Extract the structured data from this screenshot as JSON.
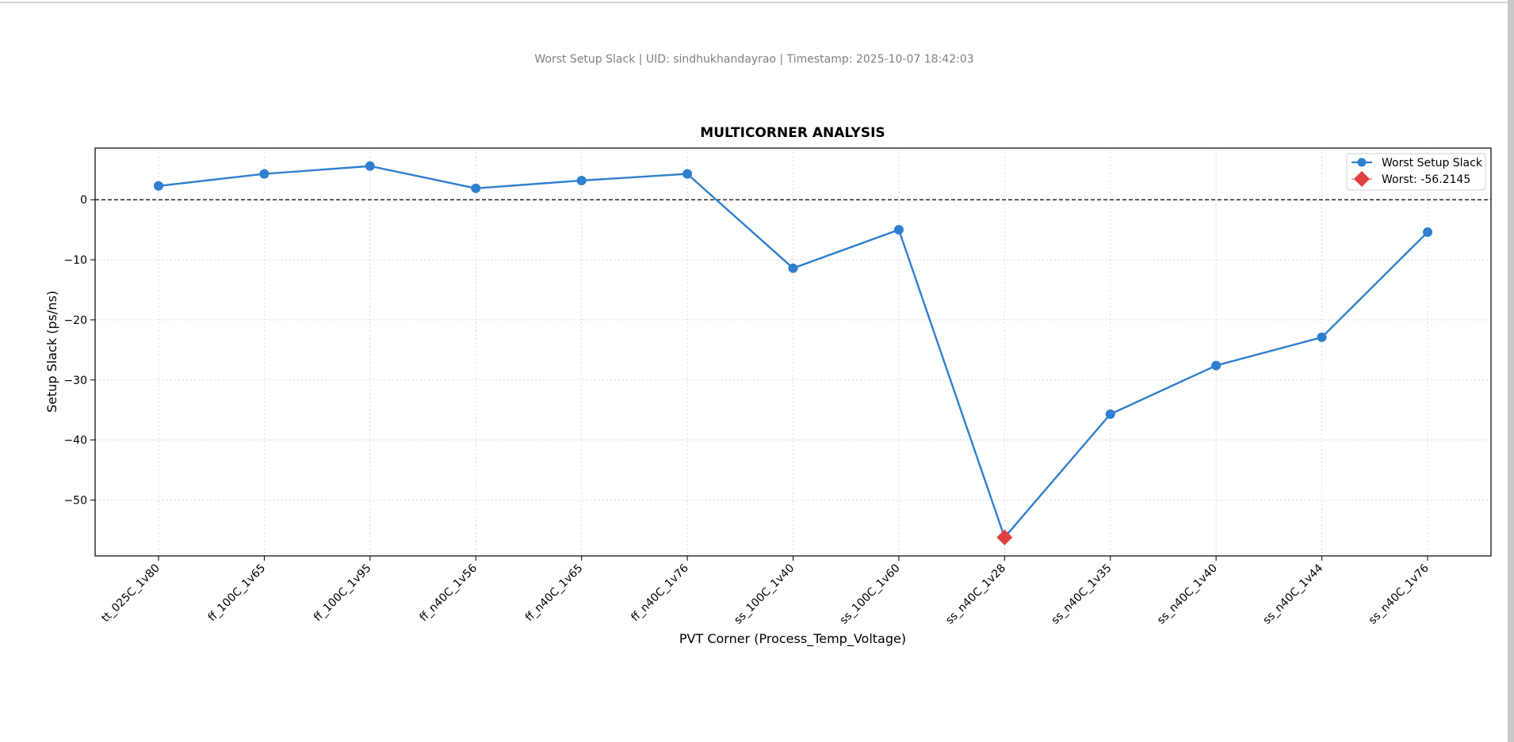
{
  "subtitle": "Worst Setup Slack | UID: sindhukhandayrao | Timestamp: 2025-10-07 18:42:03",
  "chart_data": {
    "type": "line",
    "title": "MULTICORNER ANALYSIS",
    "xlabel": "PVT Corner (Process_Temp_Voltage)",
    "ylabel": "Setup Slack (ps/ns)",
    "categories": [
      "tt_025C_1v80",
      "ff_100C_1v65",
      "ff_100C_1v95",
      "ff_n40C_1v56",
      "ff_n40C_1v65",
      "ff_n40C_1v76",
      "ss_100C_1v40",
      "ss_100C_1v60",
      "ss_n40C_1v28",
      "ss_n40C_1v35",
      "ss_n40C_1v40",
      "ss_n40C_1v44",
      "ss_n40C_1v76"
    ],
    "series": [
      {
        "name": "Worst Setup Slack",
        "values": [
          2.3,
          4.3,
          5.6,
          1.9,
          3.2,
          4.3,
          -11.4,
          -5.0,
          -56.2145,
          -35.7,
          -27.6,
          -22.9,
          -5.4
        ],
        "color": "#2e7fcf",
        "marker": "circle"
      }
    ],
    "worst": {
      "label": "Worst: -56.2145",
      "index": 8,
      "value": -56.2145,
      "color": "#e04040",
      "marker": "diamond"
    },
    "reference_line": {
      "y": 0,
      "style": "dashed",
      "color": "#000000"
    },
    "yticks": [
      0,
      -10,
      -20,
      -30,
      -40,
      -50
    ],
    "ytick_labels": [
      "0",
      "−10",
      "−20",
      "−30",
      "−40",
      "−50"
    ],
    "ylim": [
      -59.3,
      8.6
    ],
    "grid": true,
    "legend_position": "top-right"
  }
}
